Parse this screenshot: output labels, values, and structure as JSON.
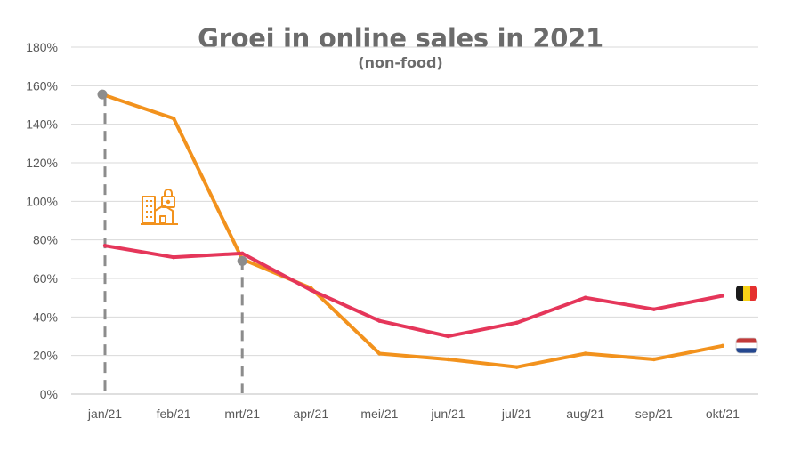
{
  "chart_data": {
    "type": "line",
    "title": "Groei in online sales in 2021",
    "subtitle": "(non-food)",
    "xlabel": "",
    "ylabel": "",
    "ylim": [
      0,
      180
    ],
    "y_ticks": [
      "0%",
      "20%",
      "40%",
      "60%",
      "80%",
      "100%",
      "120%",
      "140%",
      "160%",
      "180%"
    ],
    "categories": [
      "jan/21",
      "feb/21",
      "mrt/21",
      "apr/21",
      "mei/21",
      "jun/21",
      "jul/21",
      "aug/21",
      "sep/21",
      "okt/21"
    ],
    "grid": true,
    "series": [
      {
        "values": [
          155,
          143,
          70,
          55,
          21,
          18,
          14,
          21,
          18,
          25
        ],
        "color": "#f2921d",
        "flag": "netherlands-flag-icon"
      },
      {
        "values": [
          77,
          71,
          73,
          54,
          38,
          30,
          37,
          50,
          44,
          51
        ],
        "color": "#e5365a",
        "flag": "belgium-flag-icon"
      }
    ],
    "annotations": [
      {
        "category": "jan/21",
        "series_index": 0,
        "style": "dashed-drop-line",
        "color": "#8c8c8c"
      },
      {
        "category": "mrt/21",
        "series_index": 0,
        "style": "dashed-drop-line",
        "color": "#8c8c8c"
      },
      {
        "category": "feb/21",
        "icon": "lockdown-buildings-icon",
        "color": "#f2921d"
      }
    ]
  }
}
